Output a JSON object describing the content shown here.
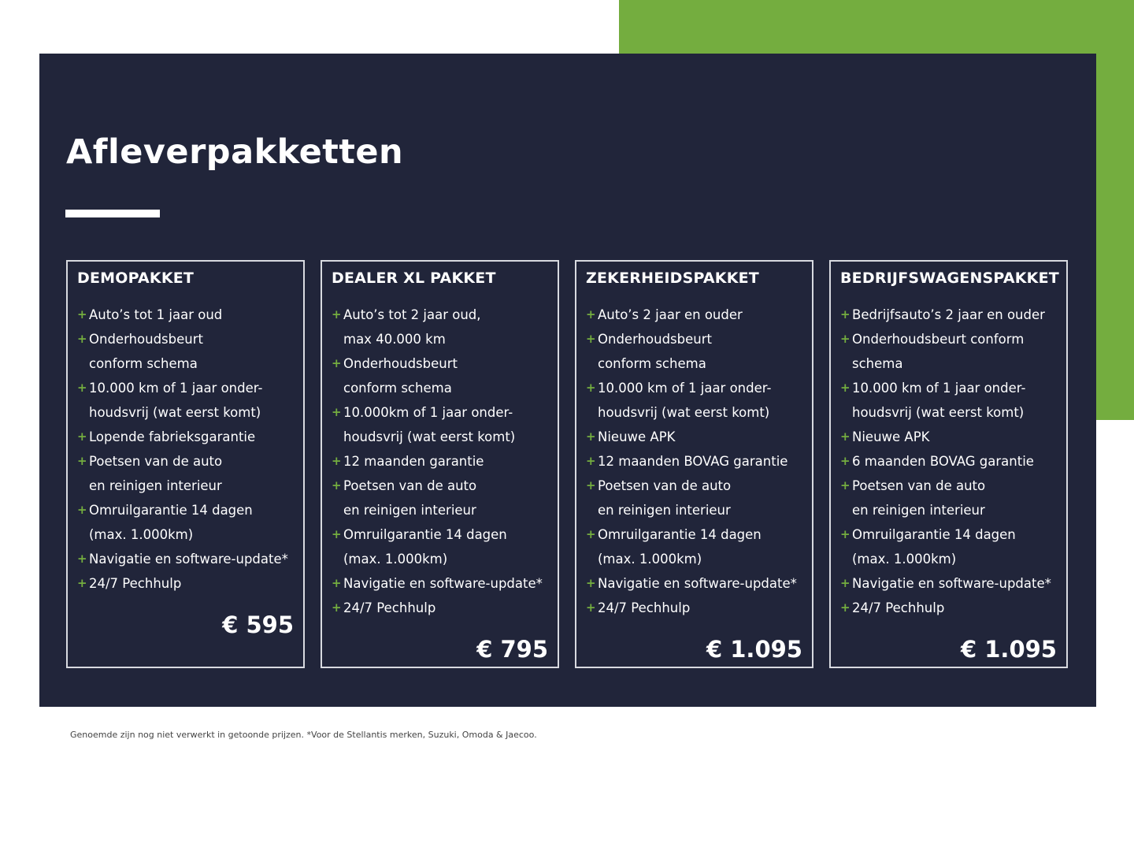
{
  "colors": {
    "green": "#74ad3f",
    "panel": "#21253a",
    "plus": "#74ad3f"
  },
  "title": "Afleverpakketten",
  "packages": [
    {
      "name": "DEMOPAKKET",
      "price": "€ 595",
      "items": [
        [
          "Auto’s tot 1 jaar oud"
        ],
        [
          "Onderhoudsbeurt",
          "conform schema"
        ],
        [
          "10.000 km of 1 jaar onder-",
          "houdsvrij (wat eerst komt)"
        ],
        [
          "Lopende fabrieksgarantie"
        ],
        [
          "Poetsen van de auto",
          "en reinigen interieur"
        ],
        [
          "Omruilgarantie 14 dagen",
          "(max. 1.000km)"
        ],
        [
          "Navigatie en software-update*"
        ],
        [
          "24/7 Pechhulp"
        ]
      ]
    },
    {
      "name": "DEALER XL PAKKET",
      "price": "€ 795",
      "items": [
        [
          "Auto’s tot 2 jaar oud,",
          "max 40.000 km"
        ],
        [
          "Onderhoudsbeurt",
          "conform schema"
        ],
        [
          "10.000km of 1 jaar onder-",
          "houdsvrij (wat eerst komt)"
        ],
        [
          "12 maanden garantie"
        ],
        [
          "Poetsen van de auto",
          "en reinigen interieur"
        ],
        [
          "Omruilgarantie 14 dagen",
          "(max. 1.000km)"
        ],
        [
          "Navigatie en software-update*"
        ],
        [
          "24/7 Pechhulp"
        ]
      ]
    },
    {
      "name": "ZEKERHEIDSPAKKET",
      "price": "€ 1.095",
      "items": [
        [
          "Auto’s 2 jaar en ouder"
        ],
        [
          "Onderhoudsbeurt",
          "conform schema"
        ],
        [
          "10.000 km of 1 jaar onder-",
          "houdsvrij (wat eerst komt)"
        ],
        [
          "Nieuwe APK"
        ],
        [
          "12 maanden BOVAG garantie"
        ],
        [
          "Poetsen van de auto",
          "en reinigen interieur"
        ],
        [
          "Omruilgarantie 14 dagen",
          "(max. 1.000km)"
        ],
        [
          "Navigatie en software-update*"
        ],
        [
          "24/7 Pechhulp"
        ]
      ]
    },
    {
      "name": "BEDRIJFSWAGENSPAKKET",
      "price": "€ 1.095",
      "items": [
        [
          "Bedrijfsauto’s 2 jaar en ouder"
        ],
        [
          "Onderhoudsbeurt conform",
          "schema"
        ],
        [
          "10.000 km of 1 jaar onder-",
          "houdsvrij (wat eerst komt)"
        ],
        [
          "Nieuwe APK"
        ],
        [
          "6 maanden BOVAG garantie"
        ],
        [
          "Poetsen van de auto",
          "en reinigen interieur"
        ],
        [
          "Omruilgarantie 14 dagen",
          "(max. 1.000km)"
        ],
        [
          "Navigatie en software-update*"
        ],
        [
          "24/7 Pechhulp"
        ]
      ]
    }
  ],
  "footnote": "Genoemde zijn nog niet verwerkt in getoonde prijzen. *Voor de Stellantis merken, Suzuki, Omoda & Jaecoo."
}
